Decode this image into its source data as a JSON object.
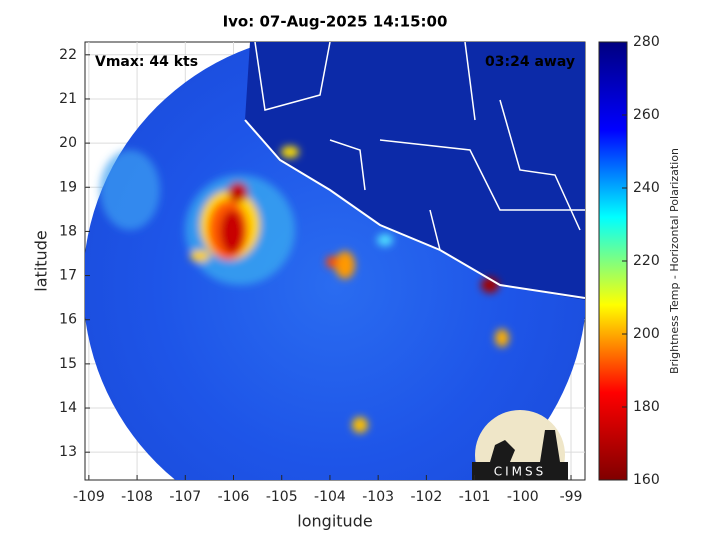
{
  "chart_data": {
    "type": "map",
    "title": "Ivo: 07-Aug-2025 14:15:00",
    "annotations": [
      "Vmax: 44 kts",
      "03:24 away"
    ],
    "logo": "CIMSS",
    "xlabel": "longitude",
    "ylabel": "latitude",
    "xlim": [
      -109.08,
      -98.71
    ],
    "xticks": [
      -109,
      -108,
      -107,
      -106,
      -105,
      -104,
      -103,
      -102,
      -101,
      -100,
      -99
    ],
    "ylim": [
      12.37,
      22.29
    ],
    "yticks": [
      13,
      14,
      15,
      16,
      17,
      18,
      19,
      20,
      21,
      22
    ],
    "grid": true,
    "colorbar": {
      "label": "Brightness Temp - Horizontal Polarization",
      "lim": [
        160,
        280
      ],
      "ticks": [
        160,
        180,
        200,
        220,
        240,
        260,
        280
      ],
      "colors": [
        "#800000",
        "#ff0000",
        "#ffff00",
        "#00ffff",
        "#0000ff",
        "#000080"
      ]
    }
  }
}
